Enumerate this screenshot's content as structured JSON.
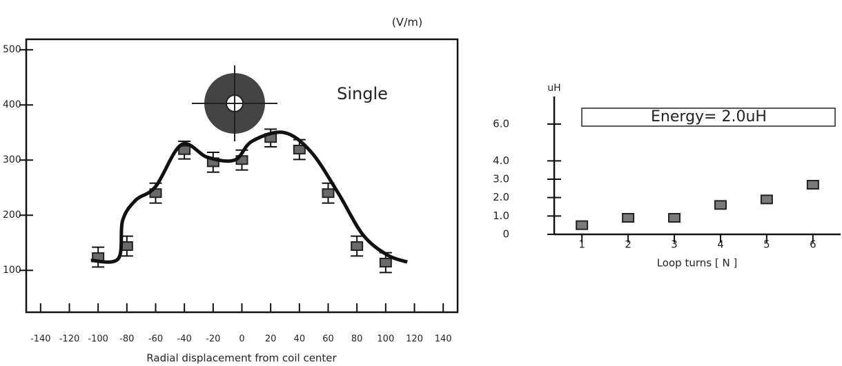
{
  "chart_data": [
    {
      "type": "scatter",
      "unit_label": "(V/m)",
      "annotation": "Single",
      "x_label": "Radial displacement from coil center",
      "xlim": [
        -150,
        150
      ],
      "xticks": [
        -140,
        -120,
        -100,
        -80,
        -60,
        -40,
        -20,
        0,
        20,
        40,
        60,
        80,
        100,
        120,
        140
      ],
      "ylim": [
        24,
        519
      ],
      "yticks": [
        100,
        200,
        300,
        400,
        500
      ],
      "series": [
        {
          "color": "#6a6a6a",
          "x": [
            -100,
            -80,
            -60,
            -40,
            -20,
            0,
            20,
            40,
            60,
            80,
            100
          ],
          "values": [
            124,
            144,
            240,
            318,
            296,
            300,
            340,
            319,
            240,
            144,
            114
          ],
          "errors": [
            18,
            18,
            18,
            16,
            18,
            18,
            16,
            18,
            18,
            18,
            18
          ]
        },
        {
          "color": "#111111",
          "style": "line",
          "x": [
            -105,
            -86,
            -83,
            -74,
            -60,
            -42,
            -24,
            -5,
            7,
            29,
            48,
            67,
            84,
            101,
            115
          ],
          "values": [
            118,
            121,
            190,
            227,
            252,
            328,
            305,
            300,
            334,
            350,
            315,
            240,
            165,
            128,
            115
          ]
        }
      ]
    },
    {
      "type": "scatter",
      "y_label": "uH",
      "x_label": "Loop turns [ N ]",
      "annotation": "Energy= 2.0uH",
      "xlim": [
        0.4,
        6.6
      ],
      "xticks": [
        1,
        2,
        3,
        4,
        5,
        6
      ],
      "ylim": [
        0,
        7.5
      ],
      "yticks": [
        0,
        {
          "value": 1,
          "label": "1.0"
        },
        {
          "value": 2,
          "label": "2.0"
        },
        {
          "value": 3,
          "label": "3.0"
        },
        {
          "value": 4,
          "label": "4.0"
        },
        {
          "value": 6,
          "label": "6.0"
        }
      ],
      "series": [
        {
          "color": "#7a7a7a",
          "x": [
            1,
            2,
            3,
            4,
            5,
            6
          ],
          "values": [
            0.5,
            0.9,
            0.9,
            1.6,
            1.9,
            2.7
          ]
        }
      ]
    }
  ]
}
